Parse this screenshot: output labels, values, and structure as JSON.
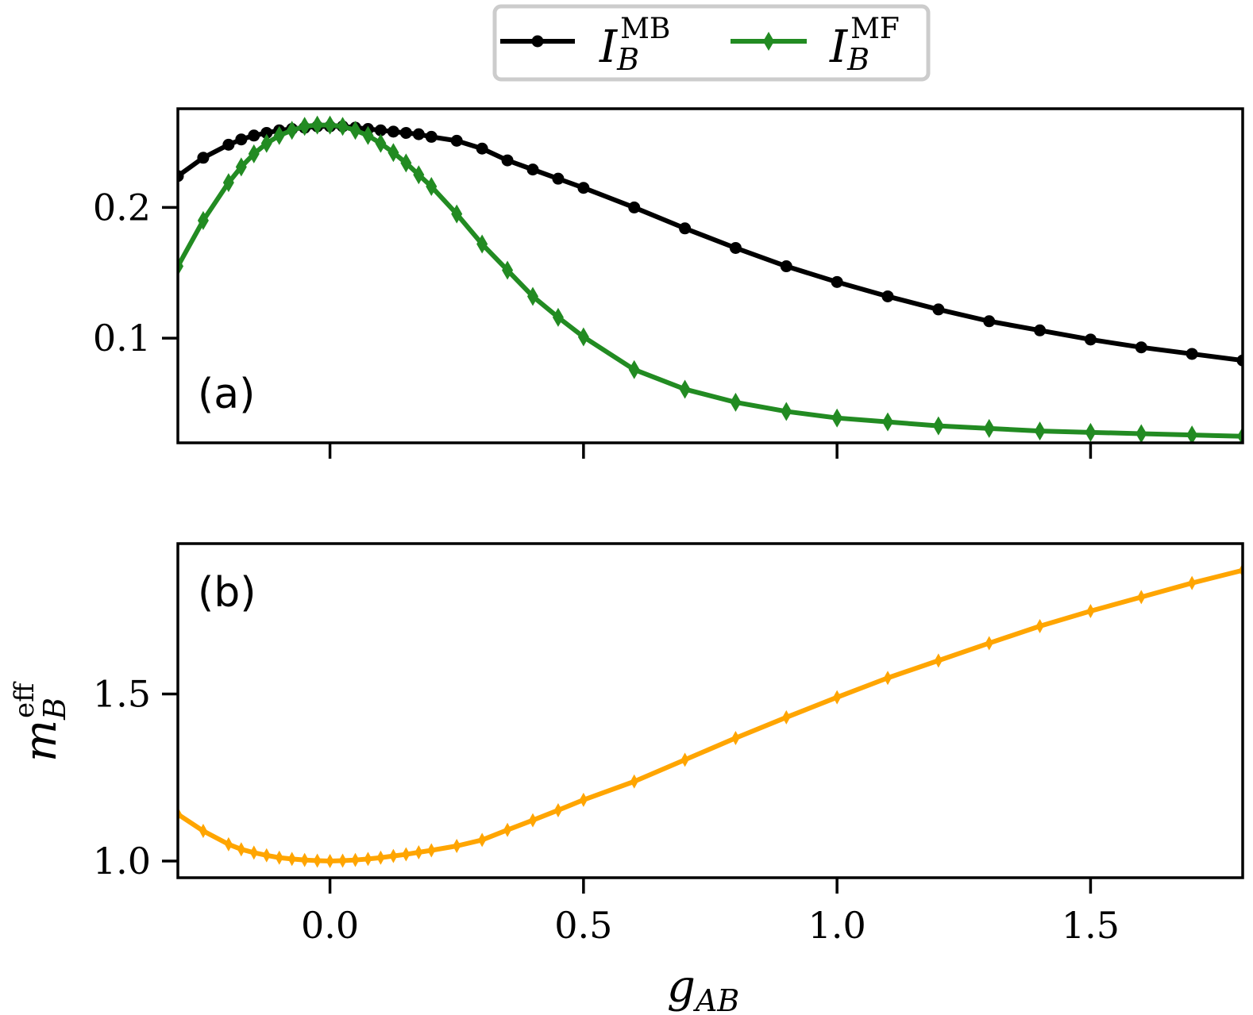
{
  "chart_data": [
    {
      "type": "line",
      "panel_label": "(a)",
      "xlim": [
        -0.3,
        1.8
      ],
      "ylim": [
        0.02,
        0.2755
      ],
      "yticks": [
        0.1,
        0.2
      ],
      "ytick_labels": [
        "0.1",
        "0.2"
      ],
      "xticks": [
        0.0,
        0.5,
        1.0,
        1.5
      ],
      "show_xtick_labels": false,
      "legend": {
        "placement": "top-center-outside",
        "entries": [
          {
            "label": "I_B^MB",
            "main": "I",
            "sub": "B",
            "sup": "MB",
            "color": "#000000",
            "marker": "circle"
          },
          {
            "label": "I_B^MF",
            "main": "I",
            "sub": "B",
            "sup": "MF",
            "color": "#228B22",
            "marker": "thin-diamond"
          }
        ]
      },
      "series": [
        {
          "name": "I_B^MB",
          "color": "#000000",
          "marker": "circle",
          "x": [
            -0.3,
            -0.25,
            -0.2,
            -0.175,
            -0.15,
            -0.125,
            -0.1,
            -0.075,
            -0.05,
            -0.025,
            0.0,
            0.025,
            0.05,
            0.075,
            0.1,
            0.125,
            0.15,
            0.175,
            0.2,
            0.25,
            0.3,
            0.35,
            0.4,
            0.45,
            0.5,
            0.6,
            0.7,
            0.8,
            0.9,
            1.0,
            1.1,
            1.2,
            1.3,
            1.4,
            1.5,
            1.6,
            1.7,
            1.8
          ],
          "y": [
            0.224,
            0.238,
            0.248,
            0.252,
            0.255,
            0.257,
            0.259,
            0.26,
            0.261,
            0.262,
            0.262,
            0.262,
            0.261,
            0.26,
            0.259,
            0.258,
            0.257,
            0.256,
            0.254,
            0.251,
            0.245,
            0.236,
            0.229,
            0.222,
            0.215,
            0.2,
            0.184,
            0.169,
            0.155,
            0.143,
            0.132,
            0.122,
            0.113,
            0.106,
            0.099,
            0.093,
            0.088,
            0.083
          ]
        },
        {
          "name": "I_B^MF",
          "color": "#228B22",
          "marker": "thin-diamond",
          "x": [
            -0.3,
            -0.25,
            -0.2,
            -0.175,
            -0.15,
            -0.125,
            -0.1,
            -0.075,
            -0.05,
            -0.025,
            0.0,
            0.025,
            0.05,
            0.075,
            0.1,
            0.125,
            0.15,
            0.175,
            0.2,
            0.25,
            0.3,
            0.35,
            0.4,
            0.45,
            0.5,
            0.6,
            0.7,
            0.8,
            0.9,
            1.0,
            1.1,
            1.2,
            1.3,
            1.4,
            1.5,
            1.6,
            1.7,
            1.8
          ],
          "y": [
            0.155,
            0.19,
            0.219,
            0.231,
            0.241,
            0.249,
            0.255,
            0.259,
            0.262,
            0.263,
            0.263,
            0.262,
            0.259,
            0.255,
            0.249,
            0.242,
            0.234,
            0.225,
            0.216,
            0.195,
            0.172,
            0.152,
            0.132,
            0.116,
            0.101,
            0.076,
            0.061,
            0.051,
            0.044,
            0.039,
            0.036,
            0.033,
            0.031,
            0.029,
            0.028,
            0.027,
            0.026,
            0.025
          ]
        }
      ]
    },
    {
      "type": "line",
      "panel_label": "(b)",
      "xlim": [
        -0.3,
        1.8
      ],
      "ylim": [
        0.95,
        1.95
      ],
      "yticks": [
        1.0,
        1.5
      ],
      "ytick_labels": [
        "1.0",
        "1.5"
      ],
      "xticks": [
        0.0,
        0.5,
        1.0,
        1.5
      ],
      "xtick_labels": [
        "0.0",
        "0.5",
        "1.0",
        "1.5"
      ],
      "xlabel": {
        "main": "g",
        "sub": "AB"
      },
      "ylabel": {
        "main": "m",
        "sub": "B",
        "sup": "eff"
      },
      "series": [
        {
          "name": "m_B^eff",
          "color": "#FFA500",
          "marker": "thin-diamond",
          "x": [
            -0.3,
            -0.25,
            -0.2,
            -0.175,
            -0.15,
            -0.125,
            -0.1,
            -0.075,
            -0.05,
            -0.025,
            0.0,
            0.025,
            0.05,
            0.075,
            0.1,
            0.125,
            0.15,
            0.175,
            0.2,
            0.25,
            0.3,
            0.35,
            0.4,
            0.45,
            0.5,
            0.6,
            0.7,
            0.8,
            0.9,
            1.0,
            1.1,
            1.2,
            1.3,
            1.4,
            1.5,
            1.6,
            1.7,
            1.8
          ],
          "y": [
            1.14,
            1.09,
            1.05,
            1.035,
            1.025,
            1.017,
            1.01,
            1.006,
            1.003,
            1.001,
            1.0,
            1.001,
            1.003,
            1.006,
            1.01,
            1.015,
            1.02,
            1.026,
            1.032,
            1.045,
            1.063,
            1.093,
            1.122,
            1.152,
            1.183,
            1.238,
            1.303,
            1.368,
            1.43,
            1.49,
            1.548,
            1.6,
            1.652,
            1.703,
            1.748,
            1.79,
            1.832,
            1.87
          ]
        }
      ]
    }
  ]
}
